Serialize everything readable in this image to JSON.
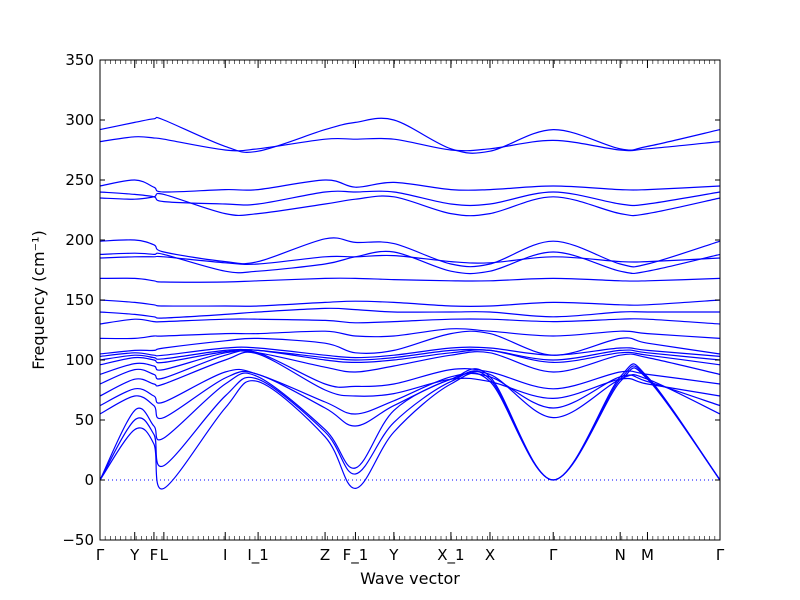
{
  "chart_data": {
    "type": "line",
    "xlabel": "Wave vector",
    "ylabel": "Frequency (cm⁻¹)",
    "ylim": [
      -50,
      350
    ],
    "yticks": [
      -50,
      0,
      50,
      100,
      150,
      200,
      250,
      300,
      350
    ],
    "xlim": [
      0,
      1
    ],
    "x_ticks": [
      {
        "label": "Γ",
        "x": 0.0
      },
      {
        "label": "Y",
        "x": 0.056
      },
      {
        "label": "F",
        "x": 0.087
      },
      {
        "label": "L",
        "x": 0.103
      },
      {
        "label": "I",
        "x": 0.202
      },
      {
        "label": "I_1",
        "x": 0.255
      },
      {
        "label": "Z",
        "x": 0.363
      },
      {
        "label": "F_1",
        "x": 0.412
      },
      {
        "label": "Y",
        "x": 0.474
      },
      {
        "label": "X_1",
        "x": 0.566
      },
      {
        "label": "X",
        "x": 0.629
      },
      {
        "label": "Γ",
        "x": 0.731
      },
      {
        "label": "N",
        "x": 0.839
      },
      {
        "label": "M",
        "x": 0.883
      },
      {
        "label": "Γ",
        "x": 1.0
      }
    ],
    "zero_line": {
      "y": 0,
      "style": "dotted"
    },
    "line_color": "#0000ff",
    "grid": false,
    "band_samples_x": [
      0,
      0.056,
      0.087,
      0.103,
      0.202,
      0.255,
      0.363,
      0.412,
      0.474,
      0.566,
      0.629,
      0.731,
      0.839,
      0.883,
      1.0
    ],
    "series": [
      {
        "values": [
          0,
          42,
          30,
          -7,
          60,
          82,
          36,
          -7,
          40,
          80,
          82,
          0,
          82,
          84,
          0
        ]
      },
      {
        "values": [
          0,
          50,
          38,
          12,
          70,
          84,
          40,
          5,
          48,
          82,
          84,
          0,
          84,
          85,
          0
        ]
      },
      {
        "values": [
          0,
          58,
          45,
          35,
          80,
          86,
          42,
          10,
          58,
          84,
          86,
          0,
          86,
          86,
          0
        ]
      },
      {
        "values": [
          55,
          70,
          62,
          52,
          85,
          88,
          60,
          45,
          62,
          84,
          88,
          52,
          84,
          84,
          55
        ]
      },
      {
        "values": [
          62,
          76,
          70,
          65,
          90,
          88,
          65,
          55,
          66,
          86,
          86,
          60,
          86,
          82,
          62
        ]
      },
      {
        "values": [
          70,
          84,
          80,
          80,
          100,
          105,
          75,
          70,
          72,
          84,
          82,
          68,
          84,
          80,
          70
        ]
      },
      {
        "values": [
          80,
          92,
          88,
          85,
          104,
          106,
          80,
          78,
          80,
          92,
          90,
          76,
          90,
          88,
          80
        ]
      },
      {
        "values": [
          88,
          97,
          95,
          92,
          106,
          106,
          94,
          90,
          95,
          104,
          106,
          90,
          104,
          102,
          88
        ]
      },
      {
        "values": [
          96,
          102,
          100,
          98,
          107,
          108,
          100,
          98,
          100,
          106,
          108,
          98,
          106,
          104,
          96
        ]
      },
      {
        "values": [
          100,
          104,
          102,
          101,
          108,
          108,
          102,
          100,
          102,
          108,
          108,
          100,
          108,
          106,
          100
        ]
      },
      {
        "values": [
          103,
          106,
          104,
          104,
          110,
          110,
          104,
          102,
          104,
          110,
          110,
          104,
          110,
          108,
          103
        ]
      },
      {
        "values": [
          105,
          108,
          108,
          110,
          116,
          118,
          114,
          106,
          108,
          122,
          122,
          104,
          118,
          114,
          105
        ]
      },
      {
        "values": [
          118,
          118,
          120,
          120,
          122,
          122,
          124,
          120,
          120,
          126,
          124,
          120,
          124,
          122,
          118
        ]
      },
      {
        "values": [
          130,
          134,
          132,
          132,
          134,
          134,
          133,
          131,
          132,
          134,
          134,
          132,
          134,
          134,
          130
        ]
      },
      {
        "values": [
          140,
          138,
          136,
          135,
          138,
          140,
          143,
          142,
          140,
          140,
          140,
          136,
          140,
          140,
          140
        ]
      },
      {
        "values": [
          150,
          148,
          146,
          145,
          145,
          145,
          148,
          149,
          148,
          145,
          145,
          148,
          146,
          146,
          150
        ]
      },
      {
        "values": [
          168,
          168,
          166,
          165,
          165,
          166,
          168,
          168,
          167,
          166,
          166,
          168,
          166,
          166,
          168
        ]
      },
      {
        "values": [
          185,
          186,
          186,
          186,
          181,
          180,
          186,
          186,
          187,
          182,
          181,
          186,
          182,
          182,
          185
        ]
      },
      {
        "values": [
          188,
          189,
          188,
          188,
          174,
          174,
          180,
          186,
          190,
          174,
          174,
          190,
          174,
          174,
          188
        ]
      },
      {
        "values": [
          199,
          200,
          196,
          190,
          182,
          182,
          201,
          198,
          197,
          180,
          180,
          199,
          180,
          180,
          199
        ]
      },
      {
        "values": [
          235,
          234,
          236,
          238,
          222,
          222,
          230,
          234,
          236,
          222,
          222,
          236,
          222,
          222,
          235
        ]
      },
      {
        "values": [
          240,
          238,
          236,
          232,
          230,
          230,
          240,
          240,
          240,
          230,
          230,
          240,
          230,
          230,
          240
        ]
      },
      {
        "values": [
          245,
          250,
          244,
          240,
          242,
          242,
          250,
          244,
          248,
          242,
          242,
          245,
          242,
          242,
          245
        ]
      },
      {
        "values": [
          282,
          286,
          285,
          284,
          275,
          276,
          284,
          284,
          284,
          275,
          276,
          283,
          275,
          276,
          282
        ]
      },
      {
        "values": [
          292,
          298,
          301,
          300,
          278,
          274,
          292,
          298,
          300,
          276,
          274,
          292,
          276,
          278,
          292
        ]
      }
    ]
  }
}
